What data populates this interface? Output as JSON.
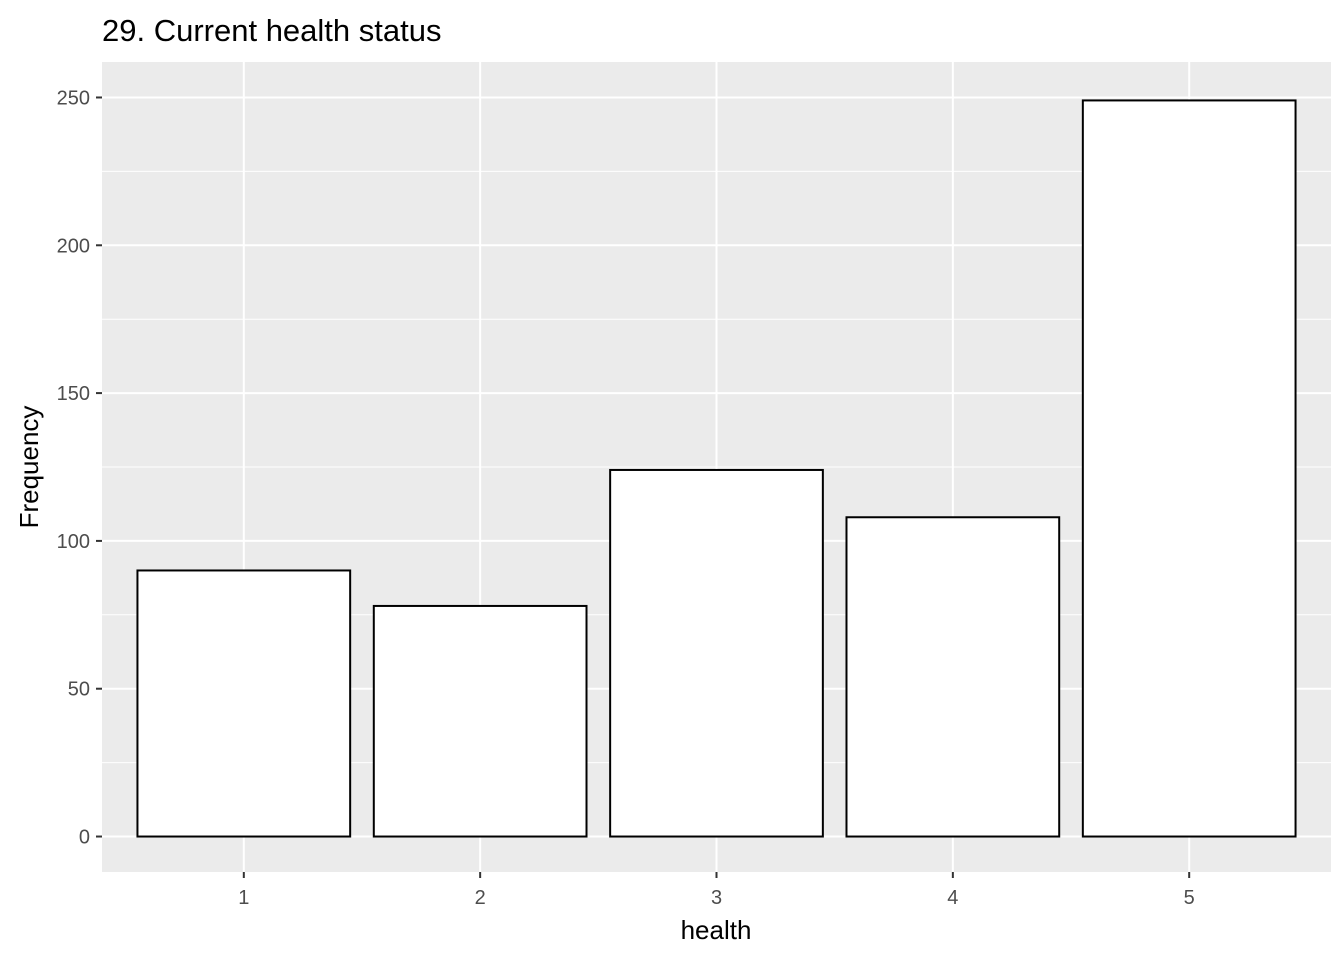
{
  "chart_data": {
    "type": "bar",
    "title": "29. Current health status",
    "xlabel": "health",
    "ylabel": "Frequency",
    "categories": [
      "1",
      "2",
      "3",
      "4",
      "5"
    ],
    "values": [
      90,
      78,
      124,
      108,
      249
    ],
    "ylim": [
      -12,
      262
    ],
    "yticks": [
      0,
      50,
      100,
      150,
      200,
      250
    ],
    "yticks_minor": [
      25,
      75,
      125,
      175,
      225
    ],
    "grid": true,
    "legend": "none",
    "colors": {
      "panel_background": "#EBEBEB",
      "grid_line": "#FFFFFF",
      "bar_fill": "#FFFFFF",
      "bar_outline": "#000000",
      "tick_text": "#4D4D4D",
      "tick_mark": "#333333"
    }
  }
}
